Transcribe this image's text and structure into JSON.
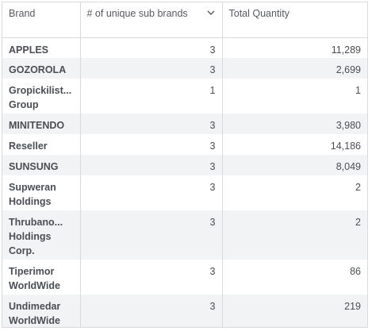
{
  "table": {
    "columns": [
      {
        "label": "Brand"
      },
      {
        "label": "# of unique sub brands"
      },
      {
        "label": "Total Quantity"
      }
    ],
    "rows": [
      {
        "brand": "APPLES",
        "sub_brands": "3",
        "quantity": "11,289"
      },
      {
        "brand": "GOZOROLA",
        "sub_brands": "3",
        "quantity": "2,699"
      },
      {
        "brand": "Gropickilist... Group",
        "sub_brands": "1",
        "quantity": "1"
      },
      {
        "brand": "MINITENDO",
        "sub_brands": "3",
        "quantity": "3,980"
      },
      {
        "brand": "Reseller",
        "sub_brands": "3",
        "quantity": "14,186"
      },
      {
        "brand": "SUNSUNG",
        "sub_brands": "3",
        "quantity": "8,049"
      },
      {
        "brand": "Supweran Holdings",
        "sub_brands": "3",
        "quantity": "2"
      },
      {
        "brand": "Thrubano... Holdings Corp.",
        "sub_brands": "3",
        "quantity": "2"
      },
      {
        "brand": "Tiperimor WorldWide",
        "sub_brands": "3",
        "quantity": "86"
      },
      {
        "brand": "Undimedar WorldWide",
        "sub_brands": "3",
        "quantity": "219"
      }
    ],
    "sort_icon": "chevron-down-icon"
  }
}
